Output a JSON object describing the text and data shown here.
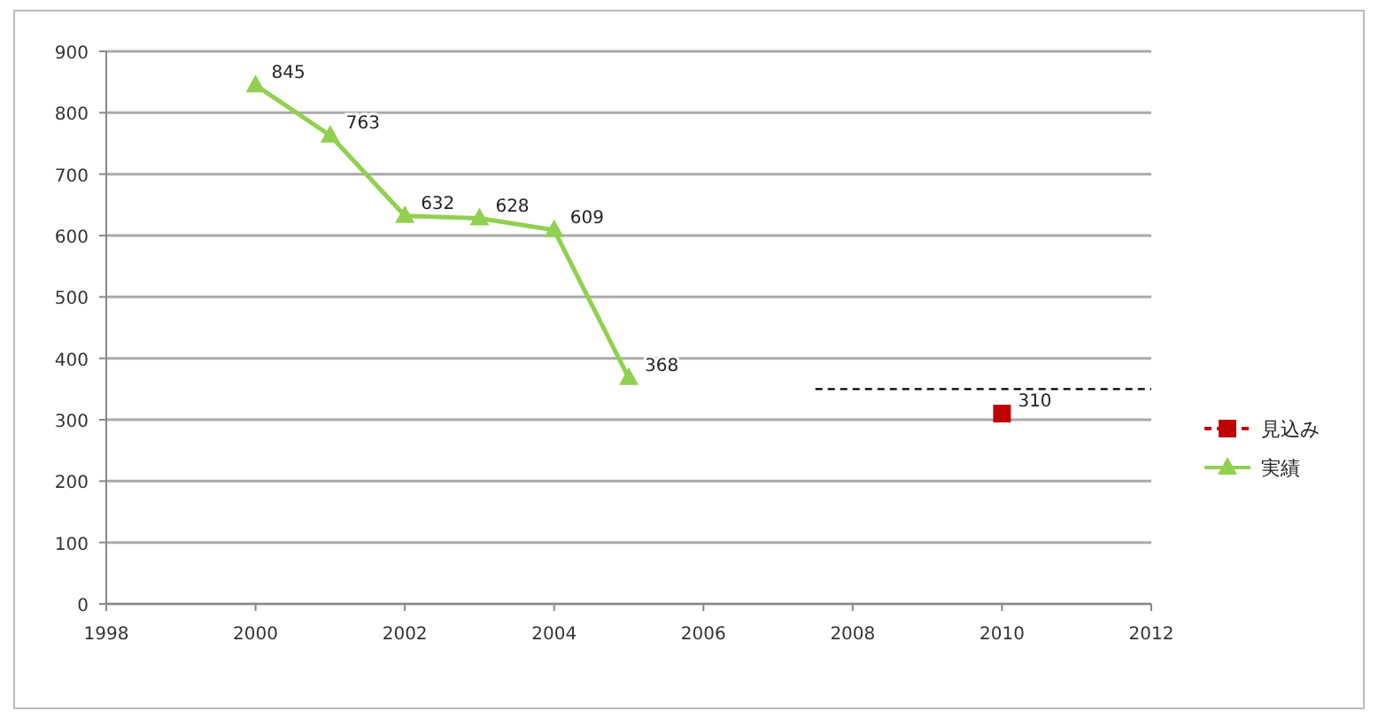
{
  "chart_data": {
    "type": "line",
    "xlim": [
      1998,
      2012
    ],
    "xticks": [
      1998,
      2000,
      2002,
      2004,
      2006,
      2008,
      2010,
      2012
    ],
    "ylim": [
      0,
      900
    ],
    "yticks": [
      0,
      100,
      200,
      300,
      400,
      500,
      600,
      700,
      800,
      900
    ],
    "grid": "y",
    "legend": "right",
    "series": [
      {
        "name": "見込み",
        "color": "#c00000",
        "x": [
          2010
        ],
        "values": [
          310
        ],
        "marker": "square",
        "line_style": "dashed",
        "value_labels": [
          "310"
        ]
      },
      {
        "name": "実績",
        "color": "#92d050",
        "x": [
          2000,
          2001,
          2002,
          2003,
          2004,
          2005
        ],
        "values": [
          845,
          763,
          632,
          628,
          609,
          368
        ],
        "marker": "triangle",
        "line_style": "solid",
        "value_labels": [
          "845",
          "763",
          "632",
          "628",
          "609",
          "368"
        ]
      },
      {
        "color": "#000000",
        "type": "line",
        "x": [
          2007.5,
          2012
        ],
        "values": [
          350,
          350
        ],
        "marker": "none",
        "line_style": "dashed"
      }
    ]
  }
}
